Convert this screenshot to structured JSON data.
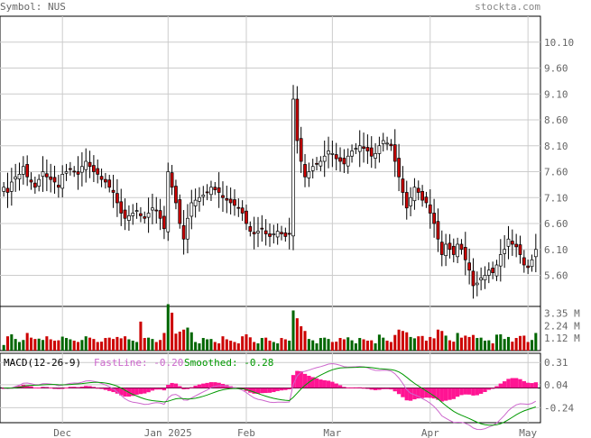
{
  "header": {
    "symbol_label": "Symbol: NUS",
    "site": "stockta.com"
  },
  "colors": {
    "up": "#ffffff",
    "down": "#cc0000",
    "vol_up": "#006600",
    "vol_down": "#cc0000",
    "macd_hist": "#ff1493",
    "fast_line": "#cc66cc",
    "smoothed_line": "#009900",
    "grid": "#cccccc",
    "text": "#666666",
    "site": "#888888"
  },
  "chart_data": [
    {
      "type": "candlestick",
      "y_ticks": [
        "10.10",
        "9.60",
        "9.10",
        "8.60",
        "8.10",
        "7.60",
        "7.10",
        "6.60",
        "6.10",
        "5.60"
      ],
      "ylim": [
        5.0,
        10.6
      ],
      "x_tick_labels": [
        "Dec",
        "Jan 2025",
        "Feb",
        "Mar",
        "Apr",
        "May"
      ],
      "x_tick_index": [
        15,
        42,
        62,
        84,
        109,
        134
      ],
      "grid": true,
      "close": [
        7.3,
        7.2,
        7.4,
        7.5,
        7.55,
        7.7,
        7.5,
        7.4,
        7.3,
        7.45,
        7.6,
        7.5,
        7.45,
        7.4,
        7.3,
        7.55,
        7.6,
        7.65,
        7.6,
        7.55,
        7.7,
        7.8,
        7.7,
        7.6,
        7.55,
        7.45,
        7.4,
        7.3,
        7.2,
        7.0,
        6.8,
        6.7,
        6.75,
        6.8,
        6.85,
        6.75,
        6.7,
        6.8,
        6.9,
        6.85,
        6.7,
        6.5,
        7.6,
        7.3,
        7.0,
        6.6,
        6.3,
        6.7,
        7.0,
        7.05,
        7.1,
        7.15,
        7.2,
        7.3,
        7.25,
        7.2,
        7.1,
        7.05,
        7.0,
        6.95,
        6.9,
        6.8,
        6.6,
        6.45,
        6.4,
        6.45,
        6.5,
        6.4,
        6.35,
        6.4,
        6.45,
        6.4,
        6.35,
        6.4,
        9.0,
        8.2,
        7.8,
        7.5,
        7.6,
        7.7,
        7.75,
        7.8,
        7.9,
        8.0,
        7.95,
        7.85,
        7.8,
        7.75,
        7.9,
        8.0,
        8.05,
        8.1,
        8.05,
        8.0,
        7.9,
        7.95,
        8.1,
        8.2,
        8.15,
        8.1,
        7.8,
        7.5,
        7.2,
        6.9,
        7.1,
        7.3,
        7.2,
        7.05,
        7.0,
        6.8,
        6.6,
        6.3,
        6.0,
        6.2,
        6.1,
        6.0,
        6.2,
        6.1,
        5.9,
        5.7,
        5.4,
        5.45,
        5.55,
        5.6,
        5.7,
        5.65,
        5.8,
        6.0,
        6.1,
        6.3,
        6.2,
        6.15,
        6.0,
        5.8,
        5.75,
        5.9,
        6.1
      ],
      "volume_ticks": [
        "3.35 M",
        "2.24 M",
        "1.12 M"
      ]
    },
    {
      "type": "macd",
      "title": "MACD(12-26-9)",
      "fast_label": "FastLine: -0.20",
      "smoothed_label": "Smoothed: -0.28",
      "y_ticks": [
        "0.31",
        "0.04",
        "-0.24"
      ],
      "y_values": [
        0.31,
        0.04,
        -0.24
      ]
    }
  ]
}
